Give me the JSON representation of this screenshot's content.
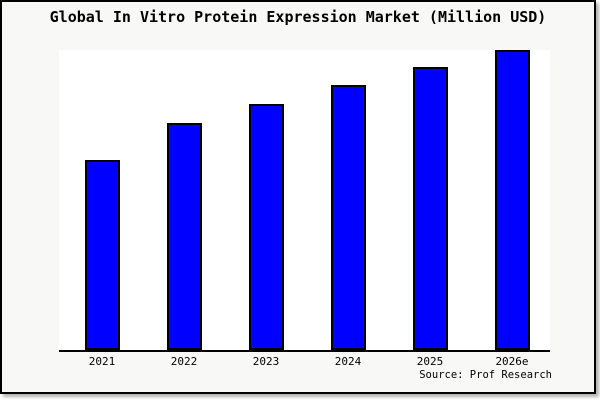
{
  "title": "Global In Vitro Protein Expression Market (Million USD)",
  "source_label": "Source: Prof Research",
  "colors": {
    "outer_background": "#f8f8f6",
    "plot_background": "#ffffff",
    "bar_fill": "#0000ff",
    "bar_edge": "#000000",
    "axis_line": "#000000",
    "text": "#000000",
    "frame_border": "#000000"
  },
  "chart_data": {
    "type": "bar",
    "title": "Global In Vitro Protein Expression Market (Million USD)",
    "categories": [
      "2021",
      "2022",
      "2023",
      "2024",
      "2025",
      "2026e"
    ],
    "values": [
      63,
      75.3,
      81.5,
      87.8,
      93.7,
      99.4
    ],
    "value_note": "no numeric y-axis or data labels shown in image; values are relative bar heights with tallest bar (2026e) scaled to ~100",
    "xlabel": "",
    "ylabel": "",
    "ylim": [
      0,
      100
    ],
    "grid": false,
    "legend": false,
    "y_axis_ticks_visible": false,
    "annotation": "Source: Prof Research"
  }
}
